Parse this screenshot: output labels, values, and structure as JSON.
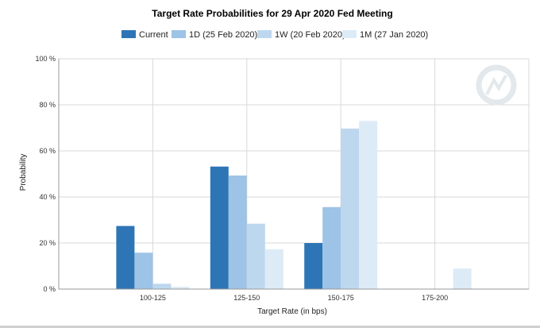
{
  "chart_data": {
    "type": "bar",
    "title": "Target Rate Probabilities for 29 Apr 2020 Fed Meeting",
    "xlabel": "Target Rate (in bps)",
    "ylabel": "Probability",
    "ylim": [
      0,
      100
    ],
    "yticks": [
      "0 %",
      "20 %",
      "40 %",
      "60 %",
      "80 %",
      "100 %"
    ],
    "ytick_values": [
      0,
      20,
      40,
      60,
      80,
      100
    ],
    "categories": [
      "100-125",
      "125-150",
      "150-175",
      "175-200"
    ],
    "series": [
      {
        "name": "Current",
        "color": "#2e75b6",
        "values": [
          27.4,
          53.2,
          20.0,
          0
        ]
      },
      {
        "name": "1D (25 Feb 2020)",
        "color": "#9dc3e6",
        "values": [
          15.8,
          49.3,
          35.6,
          0
        ]
      },
      {
        "name": "1W (20 Feb 2020)",
        "color": "#bdd7ee",
        "values": [
          2.3,
          28.4,
          69.7,
          0
        ]
      },
      {
        "name": "1M (27 Jan 2020)",
        "color": "#ddebf7",
        "values": [
          1.0,
          17.3,
          73.0,
          8.9
        ]
      }
    ],
    "grid": true,
    "legend_position": "top"
  }
}
